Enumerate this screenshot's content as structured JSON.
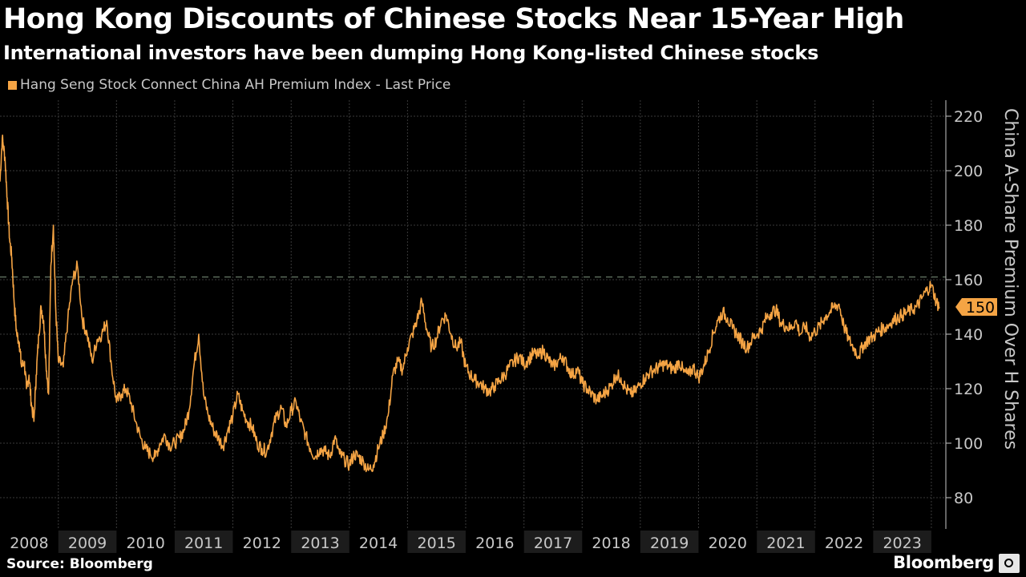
{
  "header": {
    "title": "Hong Kong Discounts of Chinese Stocks Near 15-Year High",
    "subtitle": "International investors have been dumping Hong Kong-listed Chinese stocks"
  },
  "footer": {
    "source": "Source: Bloomberg",
    "brand": "Bloomberg"
  },
  "colors": {
    "background": "#000000",
    "series": "#f5a444",
    "grid": "#3a3a3a",
    "axis_text": "#c8c8c8",
    "reference_line": "#5a6a5a",
    "year_band": "#1c1c1c"
  },
  "chart_data": {
    "type": "line",
    "title": "Hong Kong Discounts of Chinese Stocks Near 15-Year High",
    "subtitle": "International investors have been dumping Hong Kong-listed Chinese stocks",
    "ylabel": "China A-Share Premium Over H Shares",
    "y_axis_side": "right",
    "ylim": [
      80,
      220
    ],
    "yticks": [
      80,
      100,
      120,
      140,
      160,
      180,
      200,
      220
    ],
    "xlim": [
      "2008-01-01",
      "2024-04-01"
    ],
    "xticks": [
      "2008",
      "2009",
      "2010",
      "2011",
      "2012",
      "2013",
      "2014",
      "2015",
      "2016",
      "2017",
      "2018",
      "2019",
      "2020",
      "2021",
      "2022",
      "2023"
    ],
    "grid": true,
    "legend": "top-left",
    "reference_line": 161,
    "last_value_label": "150",
    "series": [
      {
        "name": "Hang Seng Stock Connect China AH Premium Index - Last Price",
        "x": [
          "2008-01-01",
          "2008-01-15",
          "2008-02-01",
          "2008-02-15",
          "2008-03-01",
          "2008-03-15",
          "2008-04-01",
          "2008-04-15",
          "2008-05-01",
          "2008-05-15",
          "2008-06-01",
          "2008-06-15",
          "2008-07-01",
          "2008-07-15",
          "2008-08-01",
          "2008-08-15",
          "2008-09-01",
          "2008-09-15",
          "2008-10-01",
          "2008-10-15",
          "2008-11-01",
          "2008-11-15",
          "2008-12-01",
          "2008-12-15",
          "2009-01-01",
          "2009-02-01",
          "2009-03-01",
          "2009-04-01",
          "2009-05-01",
          "2009-06-01",
          "2009-07-01",
          "2009-08-01",
          "2009-09-01",
          "2009-10-01",
          "2009-11-01",
          "2009-12-01",
          "2010-01-01",
          "2010-02-01",
          "2010-03-01",
          "2010-04-01",
          "2010-05-01",
          "2010-06-01",
          "2010-07-01",
          "2010-08-01",
          "2010-09-01",
          "2010-10-01",
          "2010-11-01",
          "2010-12-01",
          "2011-01-01",
          "2011-02-01",
          "2011-03-01",
          "2011-04-01",
          "2011-05-01",
          "2011-06-01",
          "2011-07-01",
          "2011-08-01",
          "2011-09-01",
          "2011-10-01",
          "2011-11-01",
          "2011-12-01",
          "2012-01-01",
          "2012-02-01",
          "2012-03-01",
          "2012-04-01",
          "2012-05-01",
          "2012-06-01",
          "2012-07-01",
          "2012-08-01",
          "2012-09-01",
          "2012-10-01",
          "2012-11-01",
          "2012-12-01",
          "2013-01-01",
          "2013-02-01",
          "2013-03-01",
          "2013-04-01",
          "2013-05-01",
          "2013-06-01",
          "2013-07-01",
          "2013-08-01",
          "2013-09-01",
          "2013-10-01",
          "2013-11-01",
          "2013-12-01",
          "2014-01-01",
          "2014-02-01",
          "2014-03-01",
          "2014-04-01",
          "2014-05-01",
          "2014-06-01",
          "2014-07-01",
          "2014-08-01",
          "2014-09-01",
          "2014-10-01",
          "2014-11-01",
          "2014-12-01",
          "2015-01-01",
          "2015-02-01",
          "2015-03-01",
          "2015-04-01",
          "2015-05-01",
          "2015-06-01",
          "2015-07-01",
          "2015-08-01",
          "2015-09-01",
          "2015-10-01",
          "2015-11-01",
          "2015-12-01",
          "2016-01-01",
          "2016-02-01",
          "2016-03-01",
          "2016-04-01",
          "2016-05-01",
          "2016-06-01",
          "2016-07-01",
          "2016-08-01",
          "2016-09-01",
          "2016-10-01",
          "2016-11-01",
          "2016-12-01",
          "2017-01-01",
          "2017-02-01",
          "2017-03-01",
          "2017-04-01",
          "2017-05-01",
          "2017-06-01",
          "2017-07-01",
          "2017-08-01",
          "2017-09-01",
          "2017-10-01",
          "2017-11-01",
          "2017-12-01",
          "2018-01-01",
          "2018-02-01",
          "2018-03-01",
          "2018-04-01",
          "2018-05-01",
          "2018-06-01",
          "2018-07-01",
          "2018-08-01",
          "2018-09-01",
          "2018-10-01",
          "2018-11-01",
          "2018-12-01",
          "2019-01-01",
          "2019-02-01",
          "2019-03-01",
          "2019-04-01",
          "2019-05-01",
          "2019-06-01",
          "2019-07-01",
          "2019-08-01",
          "2019-09-01",
          "2019-10-01",
          "2019-11-01",
          "2019-12-01",
          "2020-01-01",
          "2020-02-01",
          "2020-03-01",
          "2020-04-01",
          "2020-05-01",
          "2020-06-01",
          "2020-07-01",
          "2020-08-01",
          "2020-09-01",
          "2020-10-01",
          "2020-11-01",
          "2020-12-01",
          "2021-01-01",
          "2021-02-01",
          "2021-03-01",
          "2021-04-01",
          "2021-05-01",
          "2021-06-01",
          "2021-07-01",
          "2021-08-01",
          "2021-09-01",
          "2021-10-01",
          "2021-11-01",
          "2021-12-01",
          "2022-01-01",
          "2022-02-01",
          "2022-03-01",
          "2022-04-01",
          "2022-05-01",
          "2022-06-01",
          "2022-07-01",
          "2022-08-01",
          "2022-09-01",
          "2022-10-01",
          "2022-11-01",
          "2022-12-01",
          "2023-01-01",
          "2023-02-01",
          "2023-03-01",
          "2023-04-01",
          "2023-05-01",
          "2023-06-01",
          "2023-07-01",
          "2023-08-01",
          "2023-09-01",
          "2023-10-01",
          "2023-11-01",
          "2023-12-01",
          "2024-01-01",
          "2024-02-01",
          "2024-02-20"
        ],
        "y": [
          196,
          212,
          205,
          190,
          175,
          168,
          150,
          140,
          137,
          128,
          130,
          120,
          125,
          115,
          108,
          125,
          140,
          150,
          145,
          130,
          118,
          165,
          180,
          150,
          130,
          128,
          145,
          160,
          165,
          145,
          140,
          130,
          138,
          140,
          145,
          128,
          115,
          118,
          120,
          115,
          108,
          102,
          98,
          96,
          95,
          100,
          103,
          99,
          100,
          102,
          105,
          112,
          128,
          140,
          118,
          110,
          105,
          102,
          99,
          105,
          110,
          118,
          112,
          108,
          106,
          100,
          98,
          97,
          104,
          110,
          113,
          106,
          112,
          115,
          108,
          103,
          98,
          95,
          98,
          97,
          95,
          102,
          96,
          94,
          92,
          96,
          95,
          93,
          90,
          92,
          98,
          103,
          110,
          125,
          130,
          127,
          135,
          140,
          145,
          152,
          142,
          135,
          138,
          145,
          147,
          140,
          135,
          137,
          128,
          125,
          123,
          122,
          120,
          119,
          121,
          123,
          125,
          128,
          130,
          132,
          129,
          131,
          133,
          132,
          134,
          131,
          128,
          130,
          132,
          128,
          125,
          127,
          122,
          120,
          118,
          116,
          117,
          119,
          121,
          125,
          124,
          120,
          118,
          119,
          122,
          124,
          126,
          127,
          128,
          129,
          128,
          127,
          130,
          126,
          125,
          128,
          124,
          128,
          133,
          140,
          145,
          148,
          146,
          142,
          140,
          137,
          135,
          138,
          140,
          142,
          146,
          148,
          149,
          144,
          143,
          142,
          145,
          140,
          143,
          139,
          141,
          143,
          146,
          148,
          150,
          151,
          143,
          138,
          135,
          132,
          136,
          138,
          139,
          141,
          142,
          143,
          145,
          146,
          147,
          148,
          149,
          150,
          153,
          156,
          158,
          152,
          150
        ]
      }
    ]
  }
}
